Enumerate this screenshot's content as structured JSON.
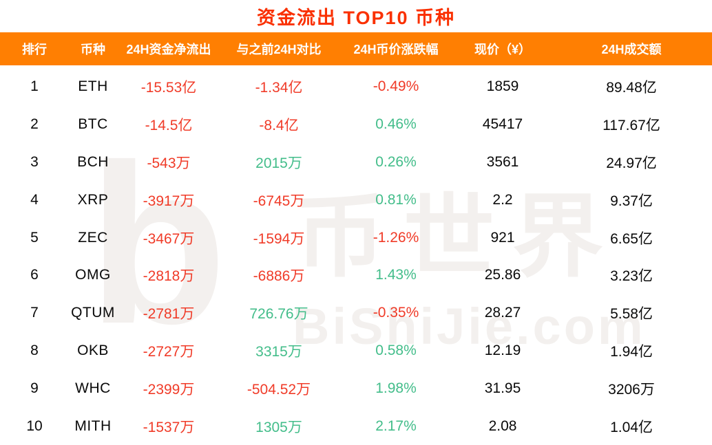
{
  "title": "资金流出 TOP10 币种",
  "watermark": {
    "logo_letter": "b",
    "brand_cn": "币世界",
    "brand_en": "BiShiJie.com"
  },
  "colors": {
    "header_bg": "#FF7F02",
    "title": "#FA3000",
    "negative": "#F03B28",
    "positive": "#43BD8A"
  },
  "chart_data": {
    "type": "table",
    "title": "资金流出 TOP10 币种",
    "columns": [
      "排行",
      "币种",
      "24H资金净流出",
      "与之前24H对比",
      "24H币价涨跌幅",
      "现价（¥）",
      "24H成交额"
    ],
    "column_keys": [
      "rank",
      "coin",
      "outflow_24h",
      "vs_prev_24h",
      "price_change_24h",
      "price_cny",
      "volume_24h"
    ],
    "rows": [
      [
        {
          "t": "1"
        },
        {
          "t": "ETH"
        },
        {
          "t": "-15.53亿",
          "c": "neg"
        },
        {
          "t": "-1.34亿",
          "c": "neg"
        },
        {
          "t": "-0.49%",
          "c": "neg"
        },
        {
          "t": "1859"
        },
        {
          "t": "89.48亿"
        }
      ],
      [
        {
          "t": "2"
        },
        {
          "t": "BTC"
        },
        {
          "t": "-14.5亿",
          "c": "neg"
        },
        {
          "t": "-8.4亿",
          "c": "neg"
        },
        {
          "t": "0.46%",
          "c": "pos"
        },
        {
          "t": "45417"
        },
        {
          "t": "117.67亿"
        }
      ],
      [
        {
          "t": "3"
        },
        {
          "t": "BCH"
        },
        {
          "t": "-543万",
          "c": "neg"
        },
        {
          "t": "2015万",
          "c": "pos"
        },
        {
          "t": "0.26%",
          "c": "pos"
        },
        {
          "t": "3561"
        },
        {
          "t": "24.97亿"
        }
      ],
      [
        {
          "t": "4"
        },
        {
          "t": "XRP"
        },
        {
          "t": "-3917万",
          "c": "neg"
        },
        {
          "t": "-6745万",
          "c": "neg"
        },
        {
          "t": "0.81%",
          "c": "pos"
        },
        {
          "t": "2.2"
        },
        {
          "t": "9.37亿"
        }
      ],
      [
        {
          "t": "5"
        },
        {
          "t": "ZEC"
        },
        {
          "t": "-3467万",
          "c": "neg"
        },
        {
          "t": "-1594万",
          "c": "neg"
        },
        {
          "t": "-1.26%",
          "c": "neg"
        },
        {
          "t": "921"
        },
        {
          "t": "6.65亿"
        }
      ],
      [
        {
          "t": "6"
        },
        {
          "t": "OMG"
        },
        {
          "t": "-2818万",
          "c": "neg"
        },
        {
          "t": "-6886万",
          "c": "neg"
        },
        {
          "t": "1.43%",
          "c": "pos"
        },
        {
          "t": "25.86"
        },
        {
          "t": "3.23亿"
        }
      ],
      [
        {
          "t": "7"
        },
        {
          "t": "QTUM"
        },
        {
          "t": "-2781万",
          "c": "neg"
        },
        {
          "t": "726.76万",
          "c": "pos"
        },
        {
          "t": "-0.35%",
          "c": "neg"
        },
        {
          "t": "28.27"
        },
        {
          "t": "5.58亿"
        }
      ],
      [
        {
          "t": "8"
        },
        {
          "t": "OKB"
        },
        {
          "t": "-2727万",
          "c": "neg"
        },
        {
          "t": "3315万",
          "c": "pos"
        },
        {
          "t": "0.58%",
          "c": "pos"
        },
        {
          "t": "12.19"
        },
        {
          "t": "1.94亿"
        }
      ],
      [
        {
          "t": "9"
        },
        {
          "t": "WHC"
        },
        {
          "t": "-2399万",
          "c": "neg"
        },
        {
          "t": "-504.52万",
          "c": "neg"
        },
        {
          "t": "1.98%",
          "c": "pos"
        },
        {
          "t": "31.95"
        },
        {
          "t": "3206万"
        }
      ],
      [
        {
          "t": "10"
        },
        {
          "t": "MITH"
        },
        {
          "t": "-1537万",
          "c": "neg"
        },
        {
          "t": "1305万",
          "c": "pos"
        },
        {
          "t": "2.17%",
          "c": "pos"
        },
        {
          "t": "2.08"
        },
        {
          "t": "1.04亿"
        }
      ]
    ]
  }
}
